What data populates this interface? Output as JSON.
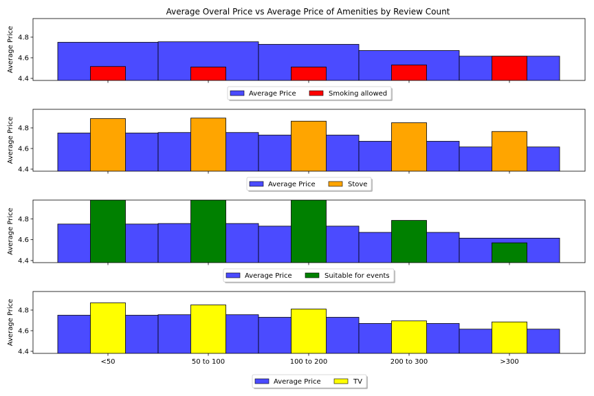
{
  "chart_data": {
    "type": "bar",
    "title": "Average Overal Price vs Average Price of Amenities by Review Count",
    "ylabel": "Average Price",
    "ylim": [
      4.38,
      4.98
    ],
    "yticks": [
      4.4,
      4.6,
      4.8
    ],
    "categories": [
      "<50",
      "50 to 100",
      "100 to 200",
      "200 to 300",
      ">300"
    ],
    "average_price": {
      "name": "Average Price",
      "values": [
        4.75,
        4.755,
        4.73,
        4.67,
        4.615
      ],
      "color": "#4b4bff"
    },
    "subplots": [
      {
        "name": "Smoking allowed",
        "values": [
          4.515,
          4.51,
          4.51,
          4.53,
          4.615
        ],
        "color": "#ff0000"
      },
      {
        "name": "Stove",
        "values": [
          4.89,
          4.895,
          4.865,
          4.85,
          4.765
        ],
        "color": "#ffa500"
      },
      {
        "name": "Suitable for events",
        "values": [
          4.98,
          4.98,
          4.98,
          4.785,
          4.57
        ],
        "color": "#008000"
      },
      {
        "name": "TV",
        "values": [
          4.87,
          4.85,
          4.81,
          4.695,
          4.685
        ],
        "color": "#ffff00"
      }
    ],
    "legend_position": "below each subplot",
    "grid": false
  }
}
